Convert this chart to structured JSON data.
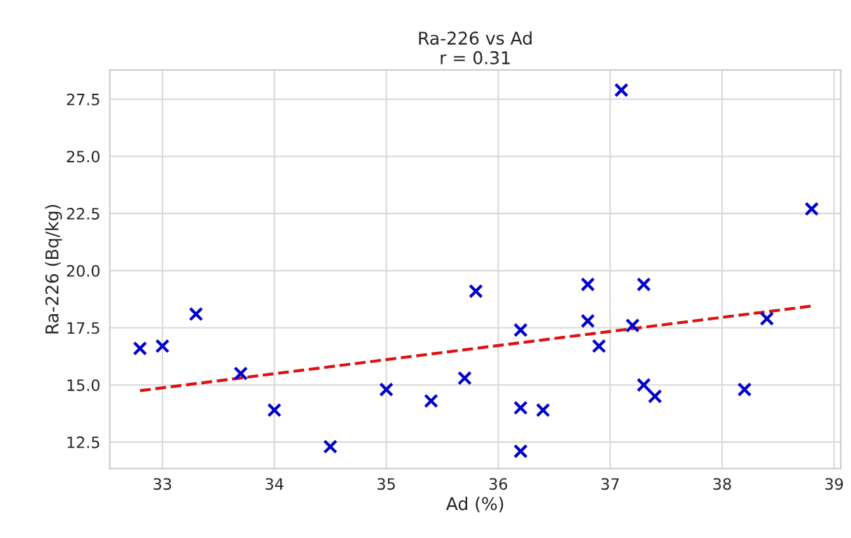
{
  "chart_data": {
    "type": "scatter",
    "title": "Ra-226 vs Ad\nr = 0.31",
    "xlabel": "Ad (%)",
    "ylabel": "Ra-226 (Bq/kg)",
    "series": [
      {
        "color": "#0000cc",
        "marker": "cross",
        "x": [
          32.8,
          33.0,
          33.3,
          33.7,
          34.0,
          34.5,
          35.0,
          35.4,
          35.7,
          35.8,
          36.2,
          36.2,
          36.2,
          36.4,
          36.8,
          36.8,
          36.9,
          37.1,
          37.2,
          37.3,
          37.3,
          37.4,
          38.2,
          38.4,
          38.8
        ],
        "values": [
          16.6,
          16.7,
          18.1,
          15.5,
          13.9,
          12.3,
          14.8,
          14.3,
          15.3,
          19.1,
          17.4,
          14.0,
          12.1,
          13.9,
          19.4,
          17.8,
          16.7,
          27.9,
          17.6,
          19.4,
          15.0,
          14.5,
          14.8,
          17.9,
          22.7
        ]
      },
      {
        "type": "line",
        "color": "#dd1111",
        "line_style": "dashed",
        "x": [
          32.8,
          38.8
        ],
        "values": [
          14.75,
          18.45
        ]
      }
    ],
    "xlim": [
      32.53,
      39.06
    ],
    "ylim": [
      11.34,
      28.78
    ],
    "xticks": [
      33,
      34,
      35,
      36,
      37,
      38,
      39
    ],
    "yticks": [
      {
        "value": 12.5,
        "label": "12.5"
      },
      {
        "value": 15,
        "label": "15.0"
      },
      {
        "value": 17.5,
        "label": "17.5"
      },
      {
        "value": 20,
        "label": "20.0"
      },
      {
        "value": 22.5,
        "label": "22.5"
      },
      {
        "value": 25,
        "label": "25.0"
      },
      {
        "value": 27.5,
        "label": "27.5"
      }
    ],
    "grid": true
  }
}
